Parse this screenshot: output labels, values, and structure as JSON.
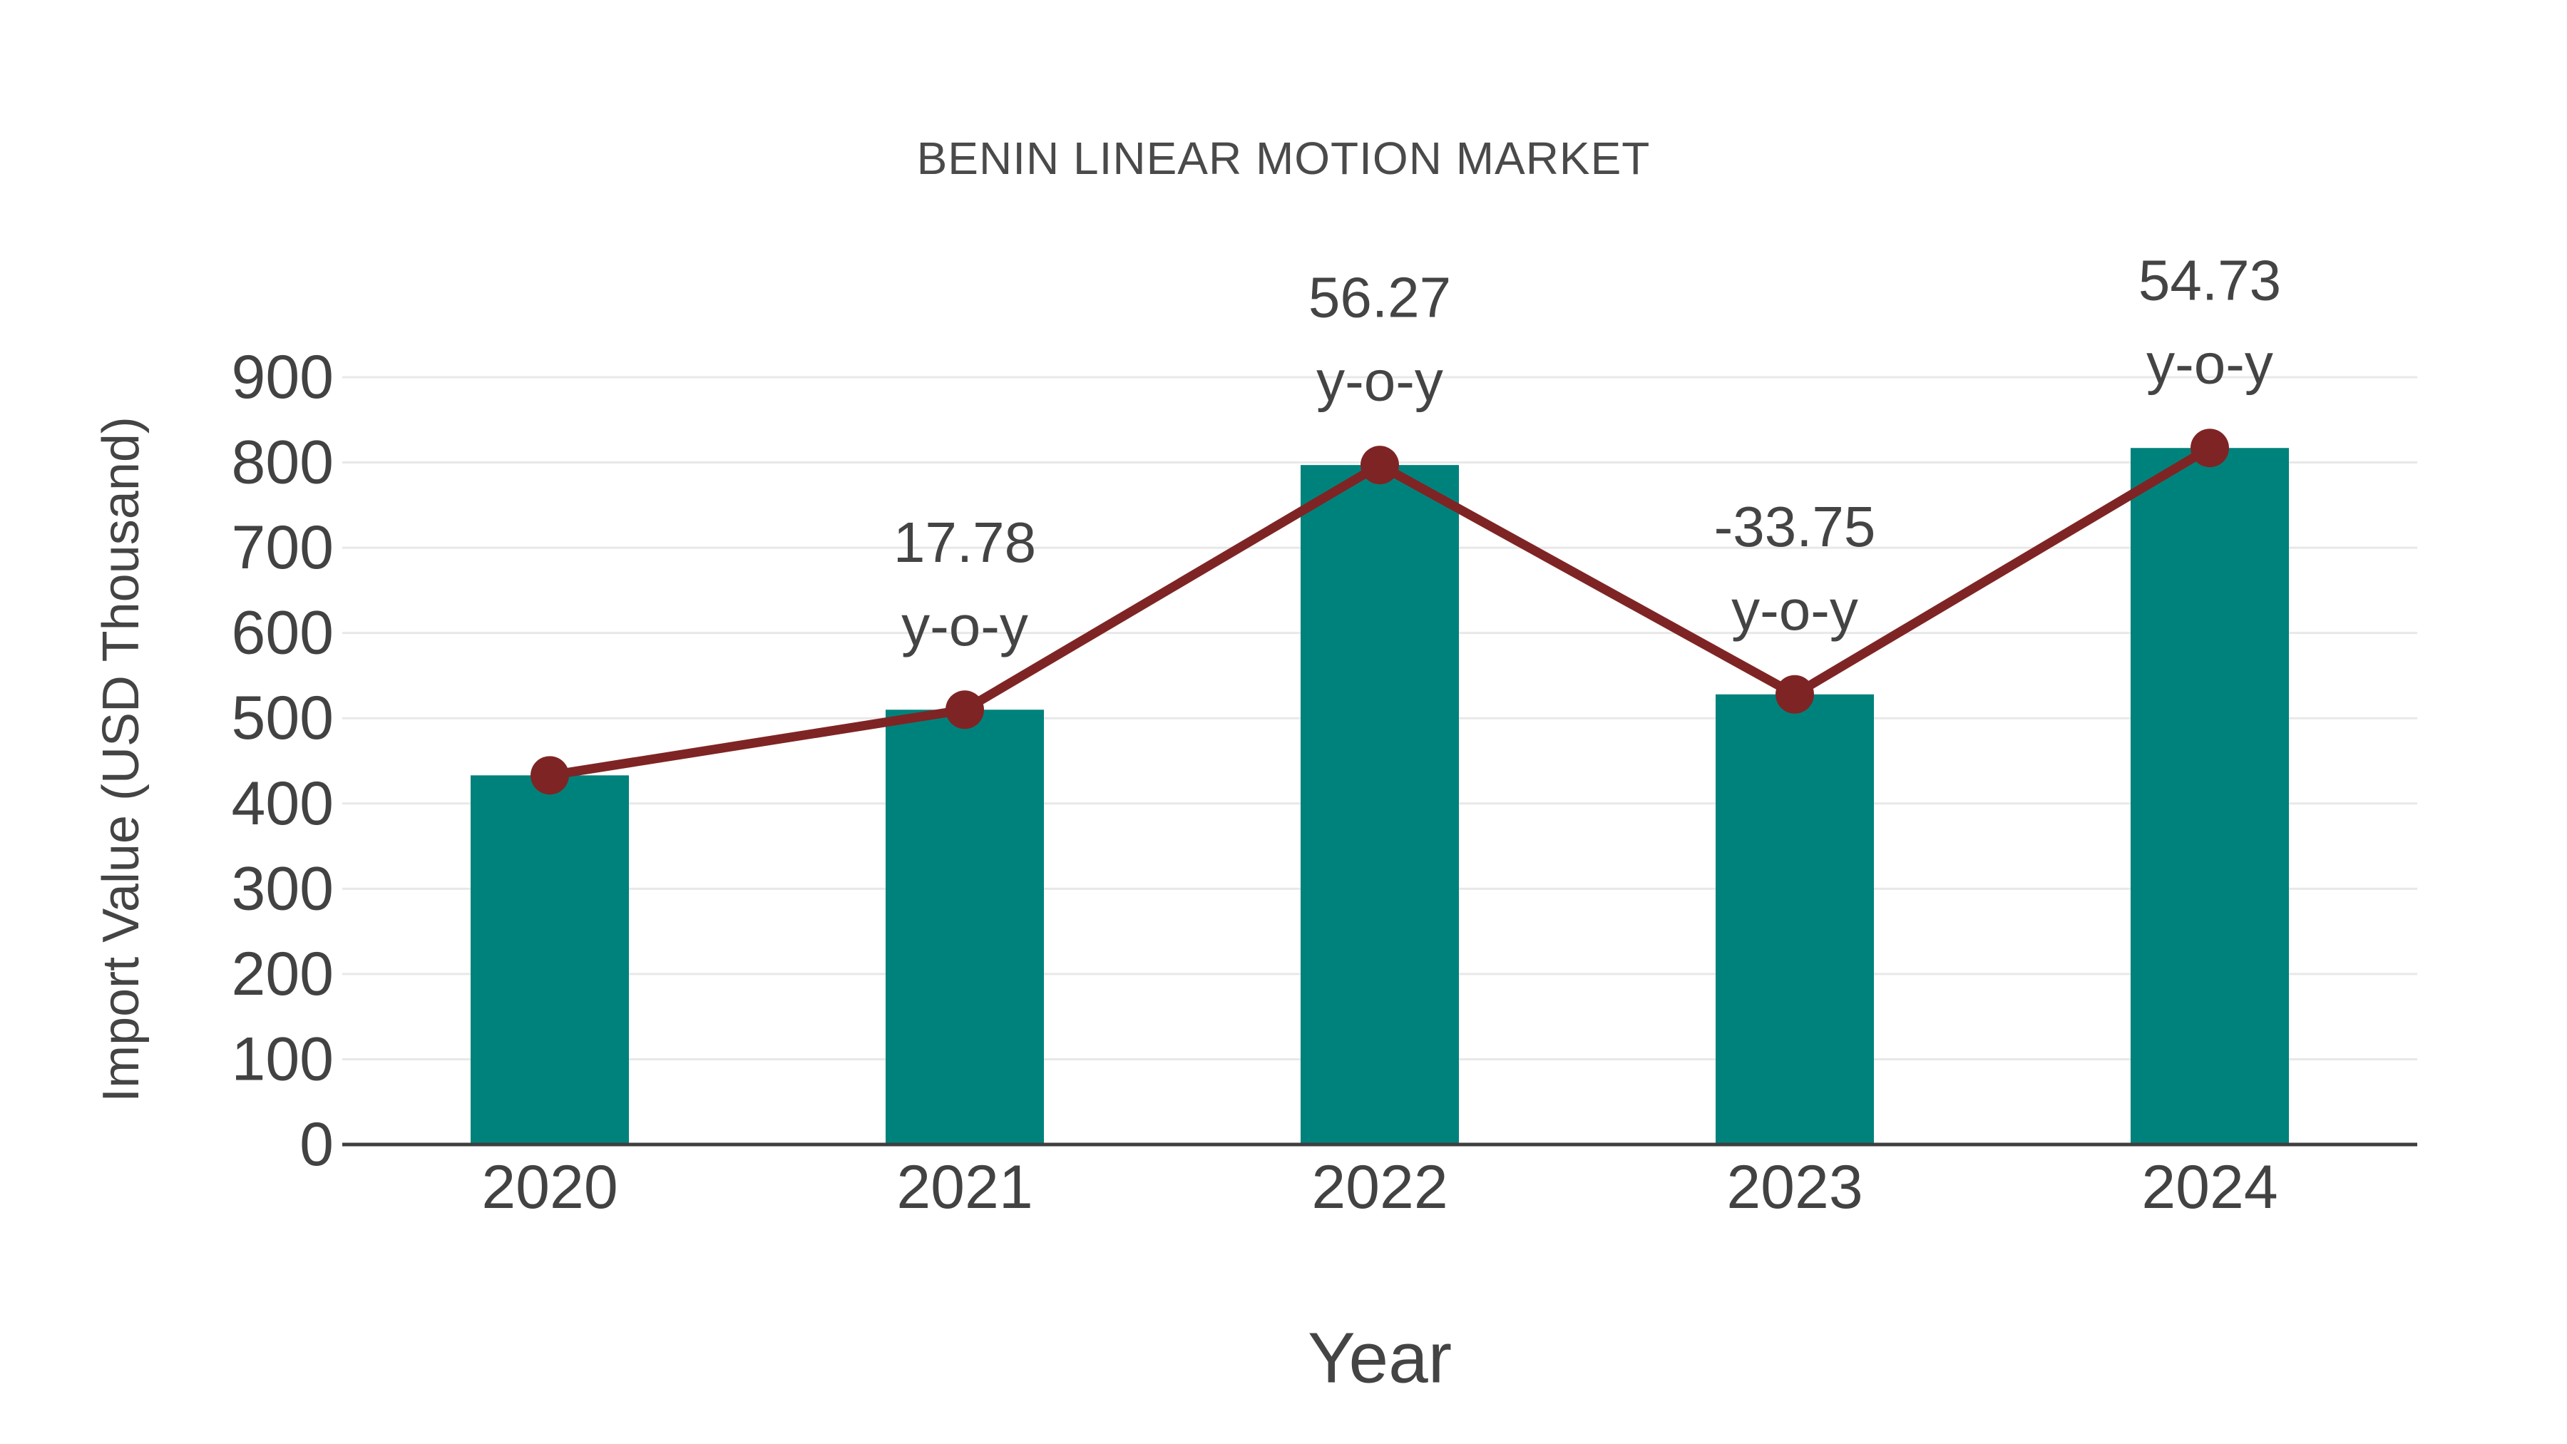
{
  "chart_data": {
    "type": "bar",
    "title": "BENIN LINEAR MOTION MARKET",
    "xlabel": "Year",
    "ylabel": "Import Value (USD Thousand)",
    "categories": [
      "2020",
      "2021",
      "2022",
      "2023",
      "2024"
    ],
    "series": [
      {
        "name": "Import Value (USD Thousand)",
        "type": "bar",
        "values": [
          433,
          510,
          797,
          528,
          817
        ]
      },
      {
        "name": "Import Value trend",
        "type": "line",
        "values": [
          433,
          510,
          797,
          528,
          817
        ]
      }
    ],
    "annotations": [
      {
        "category": "2021",
        "value": "17.78",
        "label": "y-o-y"
      },
      {
        "category": "2022",
        "value": "56.27",
        "label": "y-o-y"
      },
      {
        "category": "2023",
        "value": "-33.75",
        "label": "y-o-y"
      },
      {
        "category": "2024",
        "value": "54.73",
        "label": "y-o-y"
      }
    ],
    "ylim": [
      0,
      900
    ],
    "ytick_step": 100,
    "yticks": [
      "0",
      "100",
      "200",
      "300",
      "400",
      "500",
      "600",
      "700",
      "800",
      "900"
    ],
    "grid": true,
    "legend": "none",
    "colors": {
      "bar": "#00827C",
      "line": "#7F2424",
      "marker": "#7F2424",
      "grid": "#e8e8e8",
      "axis": "#3f3f3f",
      "tick_text": "#424242",
      "annotation_text": "#444444",
      "title_text": "#4a4a4a"
    }
  }
}
